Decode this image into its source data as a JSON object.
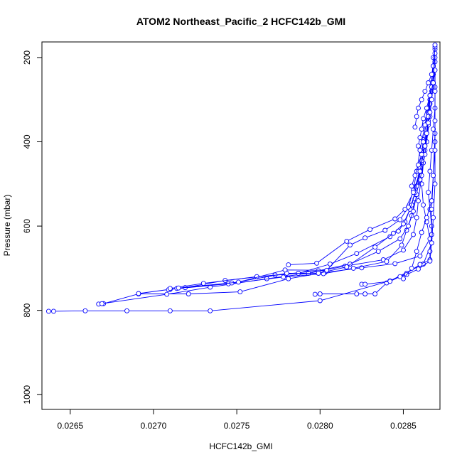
{
  "chart_data": {
    "type": "line",
    "title": "ATOM2 Northeast_Pacific_2 HCFC142b_GMI",
    "xlabel": "HCFC142b_GMI",
    "ylabel": "Pressure (mbar)",
    "xlim": [
      0.02633,
      0.02872
    ],
    "ylim": [
      1035,
      163
    ],
    "y_inverted": true,
    "xticks": [
      0.0265,
      0.027,
      0.0275,
      0.028,
      0.0285
    ],
    "xtick_labels": [
      "0.0265",
      "0.0270",
      "0.0275",
      "0.0280",
      "0.0285"
    ],
    "yticks": [
      200,
      400,
      600,
      800,
      1000
    ],
    "ytick_labels": [
      "200",
      "400",
      "600",
      "800",
      "1000"
    ],
    "grid": false,
    "legend": "none",
    "marker": "open-circle",
    "color": "#0000ff",
    "series": [
      {
        "x": [
          0.02637,
          0.0264,
          0.02659,
          0.02684,
          0.0271,
          0.02734,
          0.028,
          0.02842,
          0.02862,
          0.02867,
          0.02867,
          0.02866,
          0.02865,
          0.02866,
          0.02867,
          0.02868,
          0.02869,
          0.02869,
          0.02869
        ],
        "y": [
          802,
          802,
          801,
          801,
          801,
          801,
          777,
          730,
          690,
          640,
          600,
          560,
          520,
          470,
          420,
          370,
          320,
          270,
          210
        ]
      },
      {
        "x": [
          0.02667,
          0.0267,
          0.02691,
          0.02721,
          0.02752,
          0.02781,
          0.02803,
          0.02825,
          0.02845,
          0.0286,
          0.02866,
          0.02864,
          0.02862,
          0.02861,
          0.02862,
          0.02864,
          0.02866,
          0.02868
        ],
        "y": [
          785,
          784,
          761,
          761,
          756,
          725,
          710,
          699,
          689,
          671,
          630,
          590,
          550,
          500,
          450,
          400,
          340,
          260
        ]
      },
      {
        "x": [
          0.02669,
          0.02708,
          0.02734,
          0.02768,
          0.02793,
          0.02815,
          0.02838,
          0.0285,
          0.02856,
          0.02858,
          0.02859,
          0.02861,
          0.02863,
          0.02865,
          0.02867
        ],
        "y": [
          784,
          762,
          745,
          725,
          712,
          695,
          680,
          657,
          620,
          580,
          540,
          480,
          420,
          350,
          280
        ]
      },
      {
        "x": [
          0.02691,
          0.0271,
          0.02745,
          0.02778,
          0.02802,
          0.0282,
          0.0284,
          0.02849,
          0.02852,
          0.02855,
          0.02857,
          0.0286,
          0.02863,
          0.02865,
          0.02866
        ],
        "y": [
          760,
          750,
          737,
          721,
          713,
          700,
          684,
          645,
          610,
          575,
          535,
          490,
          430,
          360,
          300
        ]
      },
      {
        "x": [
          0.02709,
          0.02719,
          0.02743,
          0.02773,
          0.02799,
          0.02818,
          0.02835,
          0.02848,
          0.02853,
          0.02856,
          0.02858,
          0.0286,
          0.02863,
          0.02865,
          0.02867
        ],
        "y": [
          751,
          746,
          729,
          716,
          706,
          690,
          660,
          630,
          600,
          565,
          525,
          470,
          410,
          340,
          270
        ]
      },
      {
        "x": [
          0.0271,
          0.0273,
          0.02762,
          0.02787,
          0.02806,
          0.02822,
          0.02842,
          0.02847,
          0.02851,
          0.02855,
          0.02858,
          0.02861,
          0.02864,
          0.02866,
          0.02868
        ],
        "y": [
          748,
          736,
          720,
          712,
          690,
          665,
          625,
          612,
          590,
          550,
          505,
          445,
          380,
          310,
          240
        ]
      },
      {
        "x": [
          0.02714,
          0.02747,
          0.0278,
          0.02799,
          0.02816,
          0.02833,
          0.02844,
          0.0285,
          0.02854,
          0.02857,
          0.0286,
          0.02862,
          0.02865,
          0.02867,
          0.02868
        ],
        "y": [
          748,
          735,
          712,
          712,
          697,
          650,
          617,
          595,
          560,
          520,
          460,
          395,
          330,
          260,
          200
        ]
      },
      {
        "x": [
          0.02715,
          0.02751,
          0.02779,
          0.02804,
          0.02818,
          0.02827,
          0.02839,
          0.02848,
          0.02853,
          0.02856,
          0.02858,
          0.0286,
          0.02863,
          0.02866,
          0.02868
        ],
        "y": [
          747,
          733,
          704,
          705,
          645,
          628,
          610,
          585,
          555,
          515,
          470,
          420,
          360,
          290,
          220
        ]
      },
      {
        "x": [
          0.02781,
          0.02798,
          0.02816,
          0.0283,
          0.02845,
          0.02851,
          0.02856,
          0.0286,
          0.02863,
          0.02865,
          0.02867
        ],
        "y": [
          692,
          688,
          636,
          608,
          583,
          560,
          520,
          470,
          410,
          340,
          270
        ]
      },
      {
        "x": [
          0.02797,
          0.028,
          0.02822,
          0.02827,
          0.02833,
          0.0284,
          0.02852,
          0.0286,
          0.02866,
          0.02866,
          0.02867,
          0.02867,
          0.02868,
          0.02869
        ],
        "y": [
          762,
          761,
          761,
          761,
          761,
          735,
          712,
          691,
          680,
          660,
          620,
          560,
          480,
          380
        ]
      },
      {
        "x": [
          0.02825,
          0.02827,
          0.02842,
          0.02848,
          0.02852,
          0.02859,
          0.02866,
          0.02867,
          0.02868,
          0.02869,
          0.02869
        ],
        "y": [
          738,
          738,
          731,
          720,
          715,
          702,
          683,
          640,
          580,
          500,
          400
        ]
      },
      {
        "x": [
          0.0285,
          0.02855,
          0.02858,
          0.02861,
          0.02864,
          0.02867,
          0.02868,
          0.02869,
          0.02869,
          0.02869,
          0.02869
        ],
        "y": [
          725,
          700,
          660,
          615,
          580,
          540,
          480,
          420,
          350,
          280,
          180
        ]
      },
      {
        "x": [
          0.02857,
          0.02858,
          0.02859,
          0.02861,
          0.02863,
          0.02865,
          0.02867,
          0.02868,
          0.02869,
          0.02869
        ],
        "y": [
          365,
          340,
          320,
          300,
          280,
          260,
          240,
          220,
          200,
          175
        ]
      },
      {
        "x": [
          0.02859,
          0.0286,
          0.02861,
          0.02862,
          0.02864,
          0.02866,
          0.02868,
          0.02869,
          0.02869
        ],
        "y": [
          410,
          390,
          370,
          345,
          320,
          290,
          260,
          230,
          190
        ]
      },
      {
        "x": [
          0.02855,
          0.02857,
          0.02859,
          0.02861,
          0.02862,
          0.02864,
          0.02865,
          0.02866,
          0.02867,
          0.02868,
          0.02869
        ],
        "y": [
          505,
          480,
          455,
          430,
          400,
          380,
          355,
          330,
          300,
          260,
          170
        ]
      }
    ]
  }
}
